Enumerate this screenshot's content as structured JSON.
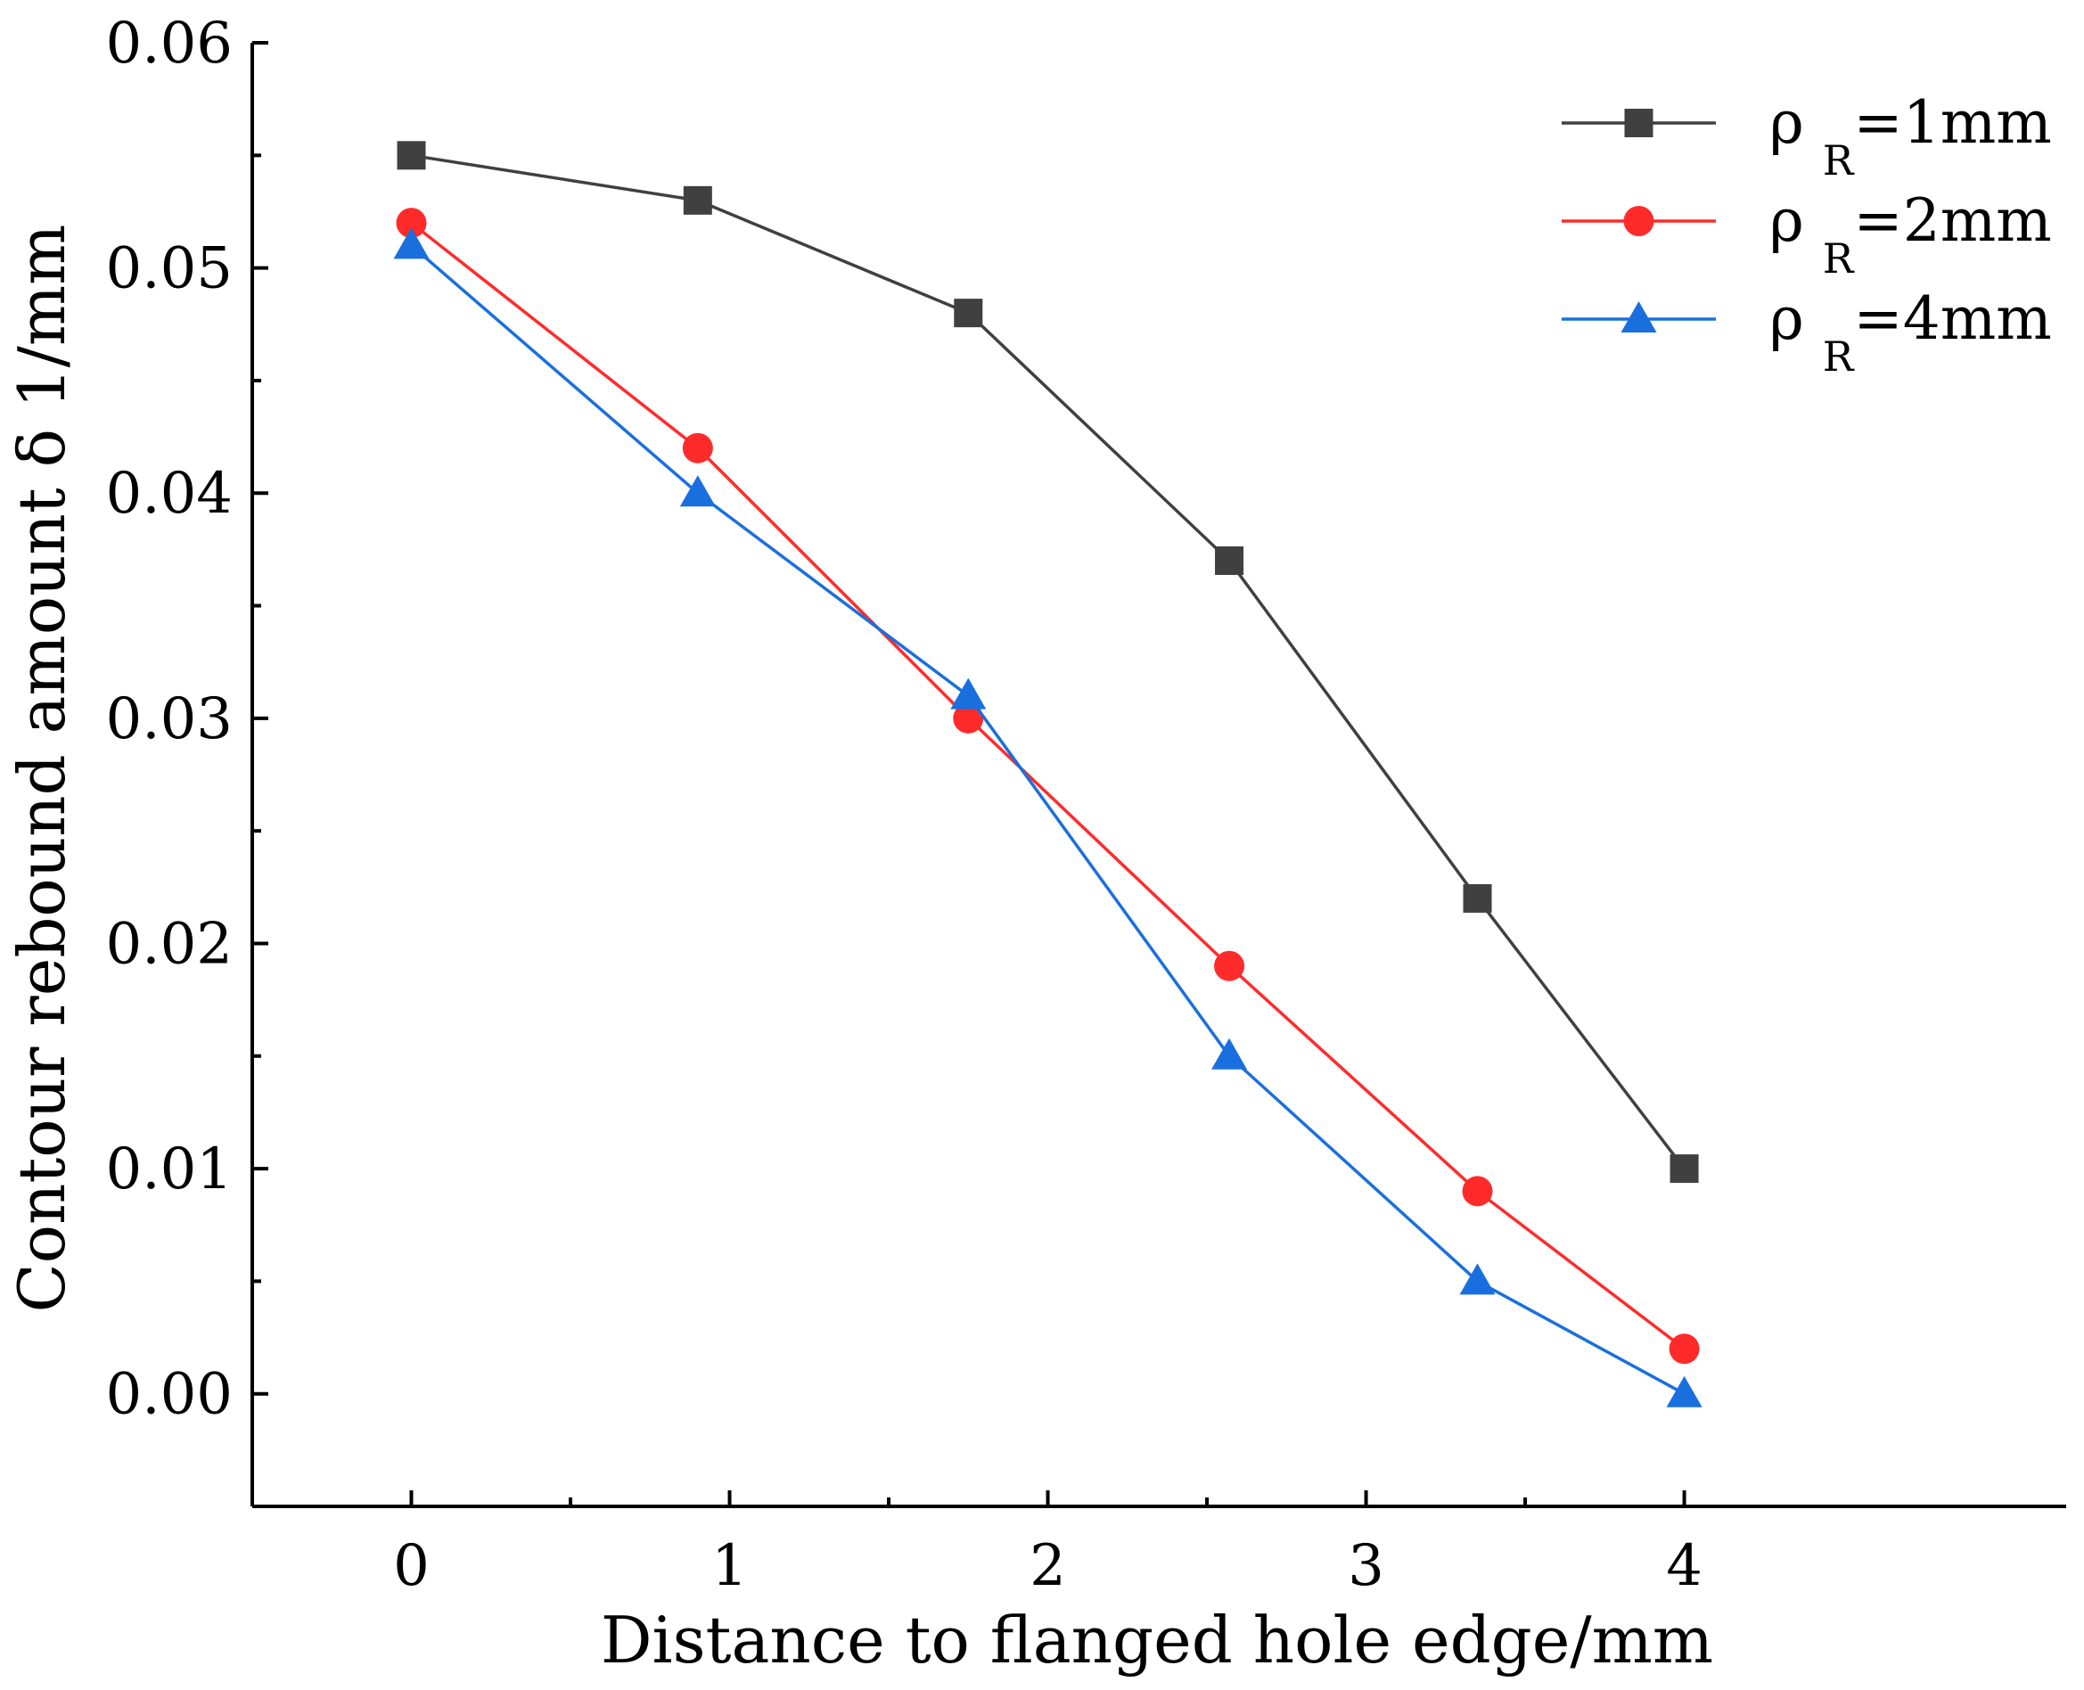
{
  "chart_data": {
    "type": "line",
    "title": "",
    "xlabel": "Distance to flanged hole edge/mm",
    "ylabel": "Contour rebound amount δ 1/mm",
    "xlim": [
      -0.5,
      5.2
    ],
    "ylim": [
      -0.005,
      0.06
    ],
    "x_ticks": [
      0,
      1,
      2,
      3,
      4
    ],
    "x_tick_labels": [
      "0",
      "1",
      "2",
      "3",
      "4"
    ],
    "y_ticks": [
      0.0,
      0.01,
      0.02,
      0.03,
      0.04,
      0.05,
      0.06
    ],
    "y_tick_labels": [
      "0.00",
      "0.01",
      "0.02",
      "0.03",
      "0.04",
      "0.05",
      "0.06"
    ],
    "grid": false,
    "legend_position": "top-right",
    "series": [
      {
        "name": "ρ R=1mm",
        "legend_prefix": "ρ",
        "legend_sub": "R",
        "legend_suffix": "=1mm",
        "color": "#404040",
        "marker": "square",
        "x": [
          0,
          0.9,
          1.75,
          2.57,
          3.35,
          4.0
        ],
        "values": [
          0.055,
          0.053,
          0.048,
          0.037,
          0.022,
          0.01
        ]
      },
      {
        "name": "ρ R=2mm",
        "legend_prefix": "ρ",
        "legend_sub": "R",
        "legend_suffix": "=2mm",
        "color": "#ff2b2b",
        "marker": "circle",
        "x": [
          0,
          0.9,
          1.75,
          2.57,
          3.35,
          4.0
        ],
        "values": [
          0.052,
          0.042,
          0.03,
          0.019,
          0.009,
          0.002
        ]
      },
      {
        "name": "ρ R=4mm",
        "legend_prefix": "ρ",
        "legend_sub": "R",
        "legend_suffix": "=4mm",
        "color": "#1a6fdf",
        "marker": "triangle",
        "x": [
          0,
          0.9,
          1.75,
          2.57,
          3.35,
          4.0
        ],
        "values": [
          0.051,
          0.04,
          0.031,
          0.015,
          0.005,
          0.0
        ]
      }
    ]
  }
}
